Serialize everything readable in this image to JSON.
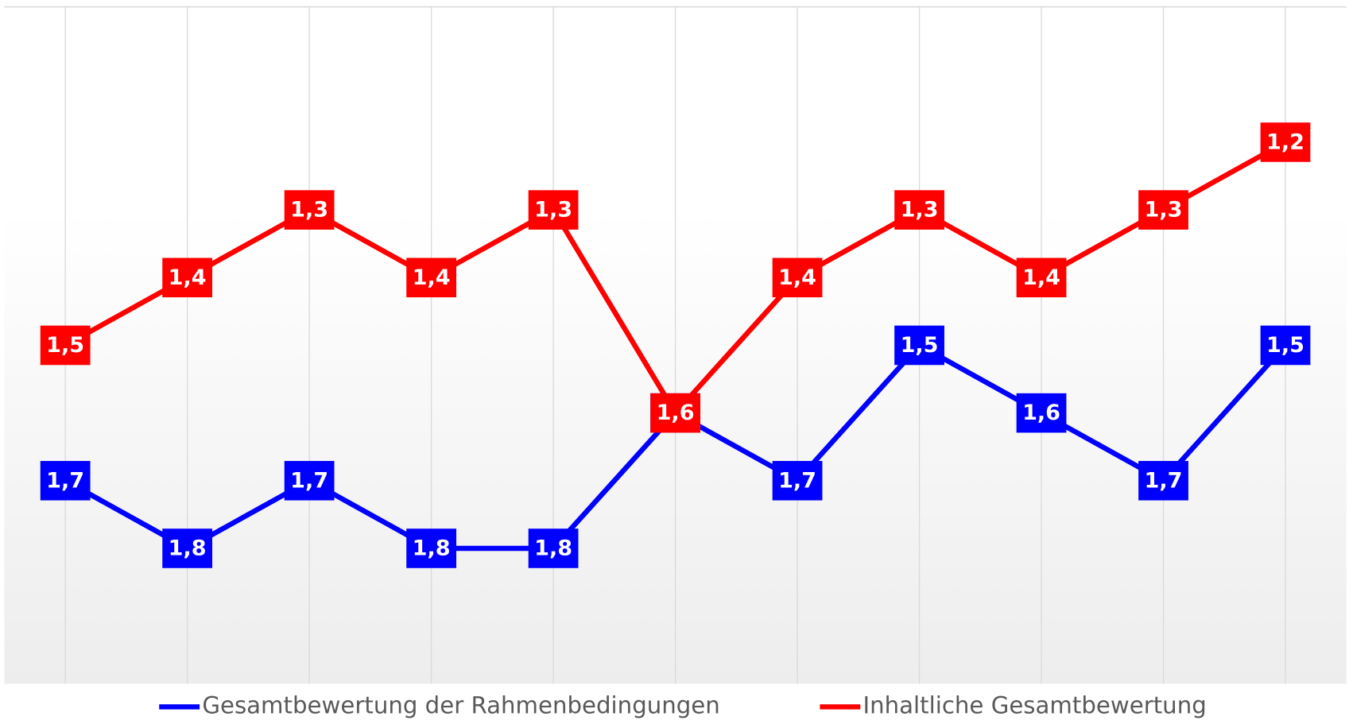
{
  "chart_data": {
    "type": "line",
    "categories": [
      null,
      null,
      null,
      null,
      null,
      null,
      null,
      null,
      null,
      null,
      null
    ],
    "ylim": [
      2.0,
      1.0
    ],
    "grid": true,
    "legend": "bottom",
    "series": [
      {
        "name": "Gesamtbewertung der Rahmenbedingungen",
        "color": "#0000ff",
        "values": [
          1.7,
          1.8,
          1.7,
          1.8,
          1.8,
          1.6,
          1.7,
          1.5,
          1.6,
          1.7,
          1.5
        ],
        "value_labels": [
          "1,7",
          "1,8",
          "1,7",
          "1,8",
          "1,8",
          "1,6",
          "1,7",
          "1,5",
          "1,6",
          "1,7",
          "1,5"
        ]
      },
      {
        "name": "Inhaltliche Gesamtbewertung",
        "color": "#ff0000",
        "values": [
          1.5,
          1.4,
          1.3,
          1.4,
          1.3,
          1.6,
          1.4,
          1.3,
          1.4,
          1.3,
          1.2
        ],
        "value_labels": [
          "1,5",
          "1,4",
          "1,3",
          "1,4",
          "1,3",
          "1,6",
          "1,4",
          "1,3",
          "1,4",
          "1,3",
          "1,2"
        ]
      }
    ]
  }
}
